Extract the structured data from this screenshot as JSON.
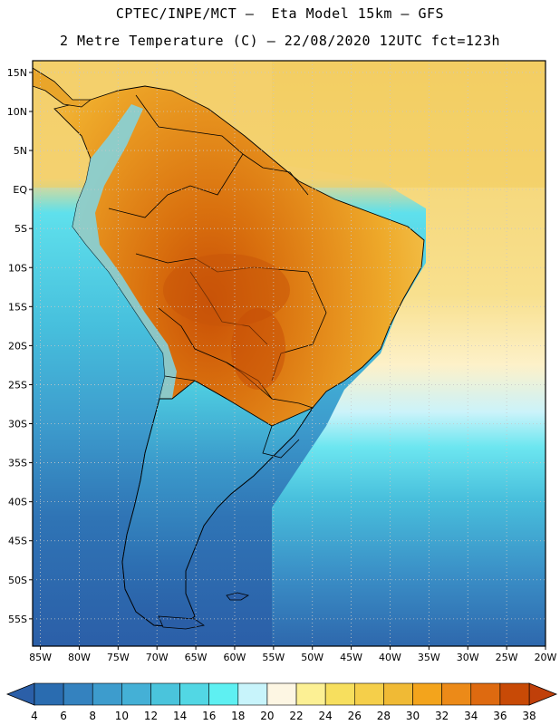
{
  "header": {
    "title_line1": "CPTEC/INPE/MCT –  Eta Model 15km – GFS",
    "title_line2": "2 Metre Temperature (C) – 22/08/2020 12UTC fct=123h"
  },
  "map": {
    "lat_labels": [
      "15N",
      "10N",
      "5N",
      "EQ",
      "5S",
      "10S",
      "15S",
      "20S",
      "25S",
      "30S",
      "35S",
      "40S",
      "45S",
      "50S",
      "55S"
    ],
    "lat_values": [
      15,
      10,
      5,
      0,
      -5,
      -10,
      -15,
      -20,
      -25,
      -30,
      -35,
      -40,
      -45,
      -50,
      -55
    ],
    "lon_labels": [
      "85W",
      "80W",
      "75W",
      "70W",
      "65W",
      "60W",
      "55W",
      "50W",
      "45W",
      "40W",
      "35W",
      "30W",
      "25W",
      "20W"
    ],
    "lon_values": [
      -85,
      -80,
      -75,
      -70,
      -65,
      -60,
      -55,
      -50,
      -45,
      -40,
      -35,
      -30,
      -25,
      -20
    ],
    "lat_range": [
      -58.5,
      16.5
    ],
    "lon_range": [
      -86,
      -20
    ]
  },
  "colorbar": {
    "labels": [
      "4",
      "6",
      "8",
      "10",
      "12",
      "14",
      "16",
      "18",
      "20",
      "22",
      "24",
      "26",
      "28",
      "30",
      "32",
      "34",
      "36",
      "38"
    ],
    "colors": [
      "#2a6cb0",
      "#3482bf",
      "#3d9ccd",
      "#44b0d6",
      "#4ac4dc",
      "#52d7e4",
      "#5ef0f2",
      "#c8f4fb",
      "#fdf6e3",
      "#fcf094",
      "#f7df5e",
      "#f5cf4a",
      "#f0ba35",
      "#f3a41c",
      "#ec8a18",
      "#de6a10",
      "#c84a06"
    ],
    "low_color": "#2b5fa8",
    "high_color": "#c0400a"
  },
  "colors": {
    "ocean_deep": "#2b5fa8",
    "ocean_mid": "#3aa8d8",
    "ocean_light": "#6fe3ee",
    "warm_tropics": "#f5d27a",
    "land_hot": "#e28a1e",
    "land_hottest": "#d0620a",
    "land_warm": "#f0ac2a"
  }
}
